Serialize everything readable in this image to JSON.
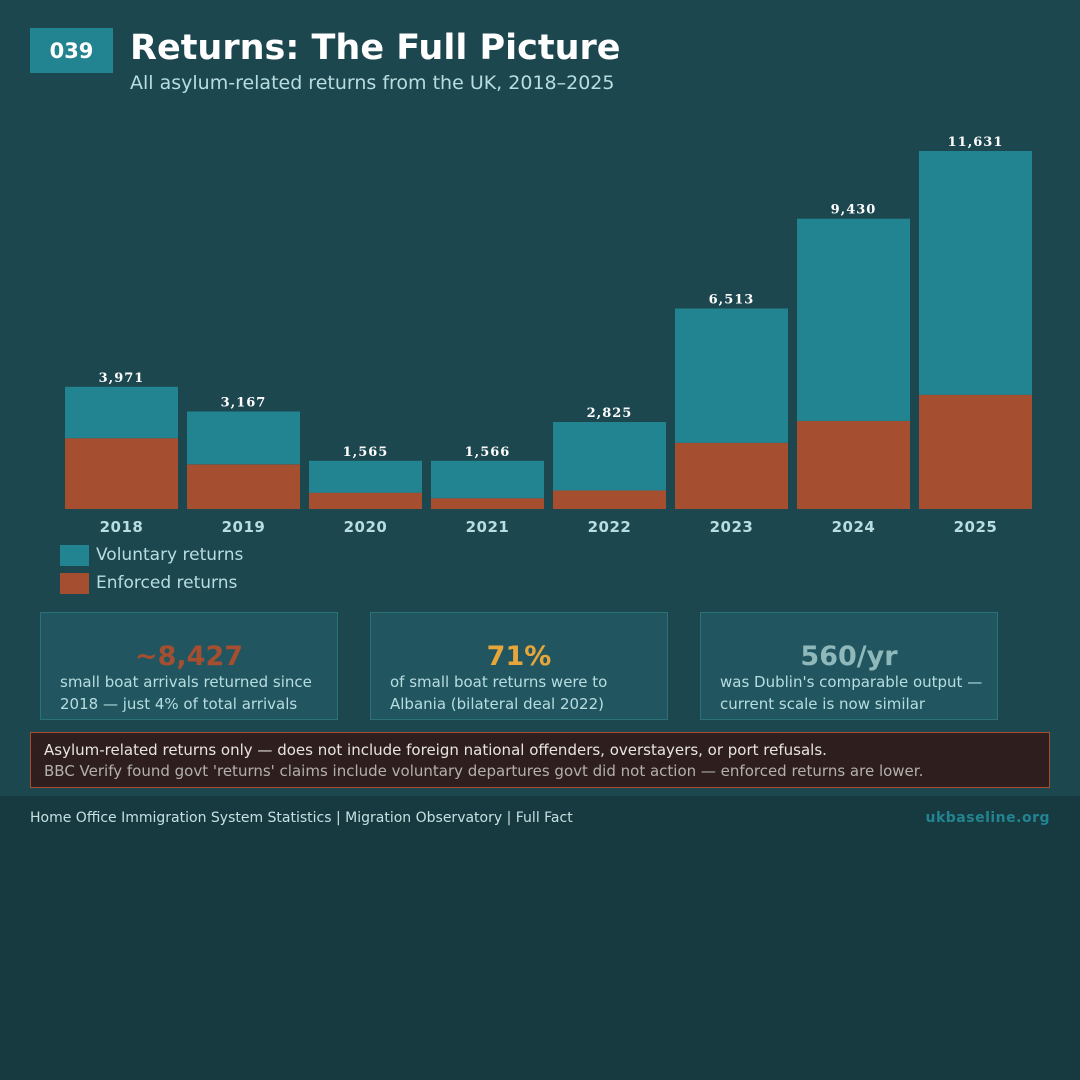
{
  "header": {
    "badge": "039",
    "title": "Returns: The Full Picture",
    "subtitle": "All asylum-related returns from the UK, 2018–2025"
  },
  "chart_data": {
    "type": "bar",
    "stacked": true,
    "categories": [
      "2018",
      "2019",
      "2020",
      "2021",
      "2022",
      "2023",
      "2024",
      "2025"
    ],
    "series": [
      {
        "name": "Enforced returns",
        "color": "#a64e30",
        "values": [
          2300,
          1450,
          530,
          350,
          600,
          2150,
          2860,
          3710
        ]
      },
      {
        "name": "Voluntary returns",
        "color": "#238491",
        "values": [
          1671,
          1717,
          1035,
          1216,
          2225,
          4363,
          6570,
          7921
        ]
      }
    ],
    "totals": [
      3971,
      3167,
      1565,
      1566,
      2825,
      6513,
      9430,
      11631
    ],
    "total_labels": [
      "3,971",
      "3,167",
      "1,565",
      "1,566",
      "2,825",
      "6,513",
      "9,430",
      "11,631"
    ],
    "ylim": [
      0,
      12600
    ],
    "grid": false,
    "legend_position": "bottom-left"
  },
  "legend": [
    {
      "label": "Voluntary returns",
      "color": "#238491"
    },
    {
      "label": "Enforced returns",
      "color": "#a64e30"
    }
  ],
  "stats": [
    {
      "value": "~8,427",
      "color": "#a64e30",
      "description": "small boat arrivals returned since 2018 — just 4% of total arrivals"
    },
    {
      "value": "71%",
      "color": "#e6a63a",
      "description": "of small boat returns were to Albania (bilateral deal 2022)"
    },
    {
      "value": "560/yr",
      "color": "#8fb8bb",
      "description": "was Dublin's comparable output — current scale is now similar"
    }
  ],
  "caveat": {
    "main": "Asylum-related returns only — does not include foreign national offenders, overstayers, or port refusals.",
    "sub": "BBC Verify found govt 'returns' claims include voluntary departures govt did not action — enforced returns are lower."
  },
  "footer": {
    "sources": "Home Office Immigration System Statistics | Migration Observatory | Full Fact",
    "site": "ukbaseline.org"
  }
}
